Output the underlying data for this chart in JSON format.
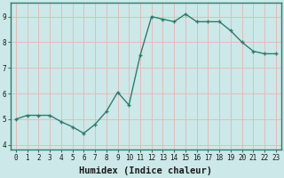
{
  "x": [
    0,
    1,
    2,
    3,
    4,
    5,
    6,
    7,
    8,
    9,
    10,
    11,
    12,
    13,
    14,
    15,
    16,
    17,
    18,
    19,
    20,
    21,
    22,
    23
  ],
  "y": [
    5.0,
    5.15,
    5.15,
    5.15,
    4.9,
    4.7,
    4.45,
    4.8,
    5.3,
    6.05,
    5.55,
    7.5,
    9.0,
    8.9,
    8.8,
    9.1,
    8.8,
    8.8,
    8.8,
    8.45,
    8.0,
    7.65,
    7.55,
    7.55
  ],
  "line_color": "#2d7d6e",
  "marker_color": "#2d7d6e",
  "bg_color": "#cce8e8",
  "grid_color": "#e8b4b4",
  "xlabel": "Humidex (Indice chaleur)",
  "xlim": [
    -0.5,
    23.5
  ],
  "ylim": [
    3.8,
    9.55
  ],
  "yticks": [
    4,
    5,
    6,
    7,
    8,
    9
  ],
  "xticks": [
    0,
    1,
    2,
    3,
    4,
    5,
    6,
    7,
    8,
    9,
    10,
    11,
    12,
    13,
    14,
    15,
    16,
    17,
    18,
    19,
    20,
    21,
    22,
    23
  ],
  "tick_fontsize": 5.5,
  "xlabel_fontsize": 7.5,
  "marker_size": 2.5,
  "line_width": 1.0,
  "spine_color": "#2d7d6e"
}
